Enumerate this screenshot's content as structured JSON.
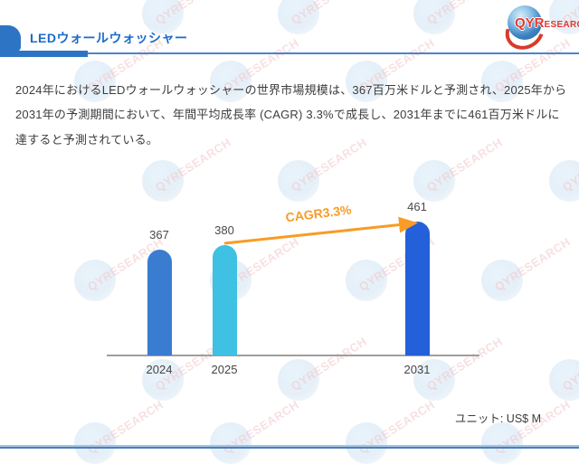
{
  "header": {
    "title": "LEDウォールウォッシャー"
  },
  "logo": {
    "text_bold": "QYR",
    "text_rest": "ESEARCH"
  },
  "paragraph": "2024年におけるLEDウォールウォッシャーの世界市場規模は、367百万米ドルと予測され、2025年から2031年の予測期間において、年間平均成長率 (CAGR) 3.3%で成長し、2031年までに461百万米ドルに達すると予測されている。",
  "chart_data": {
    "type": "bar",
    "title": "",
    "xlabel": "",
    "ylabel": "",
    "categories": [
      "2024",
      "2025",
      "2031"
    ],
    "values": [
      367,
      380,
      461
    ],
    "value_labels": [
      "367",
      "380",
      "461"
    ],
    "bar_colors": [
      "#3A7CD0",
      "#3EC1E2",
      "#2360D9"
    ],
    "annotation": "CAGR3.3%",
    "annotation_color": "#F89C27",
    "unit_label": "ユニット: US$ M",
    "ylim": [
      0,
      500
    ],
    "grid": false,
    "legend": false
  },
  "watermark": {
    "text": "QYRESEARCH"
  },
  "colors": {
    "header_blue": "#2E74C4",
    "title_blue": "#1B6BC7",
    "header_line_blue": "#4A86C8",
    "text_dark": "#3D3D3D",
    "axis_gray": "#9E9E9E",
    "footer_light_blue": "#A3C4E4",
    "footer_dark_blue": "#4D7EBE",
    "logo_red": "#E03A2F",
    "arrow_orange": "#F89C27"
  }
}
